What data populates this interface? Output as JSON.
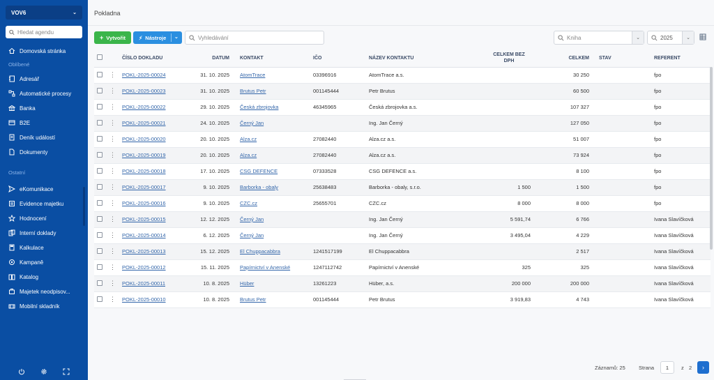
{
  "sidebar": {
    "org_name": "VOV6",
    "search_placeholder": "Hledat agendu",
    "home_label": "Domovská stránka",
    "favorites_label": "Oblíbené",
    "favorites": [
      {
        "label": "Adresář",
        "icon": "address-book-icon"
      },
      {
        "label": "Automatické procesy",
        "icon": "process-icon"
      },
      {
        "label": "Banka",
        "icon": "bank-icon"
      },
      {
        "label": "B2E",
        "icon": "b2e-icon"
      },
      {
        "label": "Deník událostí",
        "icon": "journal-icon"
      },
      {
        "label": "Dokumenty",
        "icon": "document-icon"
      }
    ],
    "other_label": "Ostatní",
    "others": [
      {
        "label": "eKomunikace",
        "icon": "send-icon"
      },
      {
        "label": "Evidence majetku",
        "icon": "asset-icon"
      },
      {
        "label": "Hodnocení",
        "icon": "star-icon"
      },
      {
        "label": "Interní doklady",
        "icon": "internal-doc-icon"
      },
      {
        "label": "Kalkulace",
        "icon": "calculator-icon"
      },
      {
        "label": "Kampaně",
        "icon": "campaign-icon"
      },
      {
        "label": "Katalog",
        "icon": "catalog-icon"
      },
      {
        "label": "Majetek neodpisov...",
        "icon": "property-icon"
      },
      {
        "label": "Mobilní skladník",
        "icon": "mobile-icon"
      }
    ]
  },
  "page_title": "Pokladna",
  "toolbar": {
    "create_label": "Vytvořit",
    "tools_label": "Nástroje",
    "search_placeholder": "Vyhledávání",
    "book_placeholder": "Kniha",
    "year_value": "2025"
  },
  "table": {
    "headers": {
      "doc_number": "ČÍSLO DOKLADU",
      "date": "DATUM",
      "contact": "KONTAKT",
      "ico": "IČO",
      "contact_name": "NÁZEV KONTAKTU",
      "total_ex_vat": "CELKEM BEZ DPH",
      "total": "CELKEM",
      "status": "STAV",
      "referent": "REFERENT"
    },
    "rows": [
      {
        "doc": "POKL-2025-00024",
        "date": "31. 10. 2025",
        "contact": "AtomTrace",
        "ico": "03396916",
        "name": "AtomTrace a.s.",
        "ex_vat": "",
        "total": "30 250",
        "status": "",
        "referent": "fpo"
      },
      {
        "doc": "POKL-2025-00023",
        "date": "31. 10. 2025",
        "contact": "Brutus Petr",
        "ico": "001145444",
        "name": "Petr Brutus",
        "ex_vat": "",
        "total": "60 500",
        "status": "",
        "referent": "fpo"
      },
      {
        "doc": "POKL-2025-00022",
        "date": "29. 10. 2025",
        "contact": "Česká zbrojovka",
        "ico": "46345965",
        "name": "Česká zbrojovka a.s.",
        "ex_vat": "",
        "total": "107 327",
        "status": "",
        "referent": "fpo"
      },
      {
        "doc": "POKL-2025-00021",
        "date": "24. 10. 2025",
        "contact": "Černý Jan",
        "ico": "",
        "name": "Ing. Jan Černý",
        "ex_vat": "",
        "total": "127 050",
        "status": "",
        "referent": "fpo"
      },
      {
        "doc": "POKL-2025-00020",
        "date": "20. 10. 2025",
        "contact": "Alza.cz",
        "ico": "27082440",
        "name": "Alza.cz a.s.",
        "ex_vat": "",
        "total": "51 007",
        "status": "",
        "referent": "fpo"
      },
      {
        "doc": "POKL-2025-00019",
        "date": "20. 10. 2025",
        "contact": "Alza.cz",
        "ico": "27082440",
        "name": "Alza.cz a.s.",
        "ex_vat": "",
        "total": "73 924",
        "status": "",
        "referent": "fpo"
      },
      {
        "doc": "POKL-2025-00018",
        "date": "17. 10. 2025",
        "contact": "CSG DEFENCE",
        "ico": "07333528",
        "name": "CSG DEFENCE a.s.",
        "ex_vat": "",
        "total": "8 100",
        "status": "",
        "referent": "fpo"
      },
      {
        "doc": "POKL-2025-00017",
        "date": "9. 10. 2025",
        "contact": "Barborka - obaly",
        "ico": "25638483",
        "name": "Barborka - obaly, s.r.o.",
        "ex_vat": "1 500",
        "total": "1 500",
        "status": "",
        "referent": "fpo"
      },
      {
        "doc": "POKL-2025-00016",
        "date": "9. 10. 2025",
        "contact": "CZC.cz",
        "ico": "25655701",
        "name": "CZC.cz",
        "ex_vat": "8 000",
        "total": "8 000",
        "status": "",
        "referent": "fpo"
      },
      {
        "doc": "POKL-2025-00015",
        "date": "12. 12. 2025",
        "contact": "Černý Jan",
        "ico": "",
        "name": "Ing. Jan Černý",
        "ex_vat": "5 591,74",
        "total": "6 766",
        "status": "",
        "referent": "Ivana Slavíčková"
      },
      {
        "doc": "POKL-2025-00014",
        "date": "6. 12. 2025",
        "contact": "Černý Jan",
        "ico": "",
        "name": "Ing. Jan Černý",
        "ex_vat": "3 495,04",
        "total": "4 229",
        "status": "",
        "referent": "Ivana Slavíčková"
      },
      {
        "doc": "POKL-2025-00013",
        "date": "15. 12. 2025",
        "contact": "El Chuppacabbra",
        "ico": "1241517199",
        "name": "El Chuppacabbra",
        "ex_vat": "",
        "total": "2 517",
        "status": "",
        "referent": "Ivana Slavíčková"
      },
      {
        "doc": "POKL-2025-00012",
        "date": "15. 11. 2025",
        "contact": "Papírnictví v Anenské",
        "ico": "1247112742",
        "name": "Papírnictví v Anenské",
        "ex_vat": "325",
        "total": "325",
        "status": "",
        "referent": "Ivana Slavíčková"
      },
      {
        "doc": "POKL-2025-00011",
        "date": "10. 8. 2025",
        "contact": "Hüber",
        "ico": "13261223",
        "name": "Hüber, a.s.",
        "ex_vat": "200 000",
        "total": "200 000",
        "status": "",
        "referent": "Ivana Slavíčková"
      },
      {
        "doc": "POKL-2025-00010",
        "date": "10. 8. 2025",
        "contact": "Brutus Petr",
        "ico": "001145444",
        "name": "Petr Brutus",
        "ex_vat": "3 919,83",
        "total": "4 743",
        "status": "",
        "referent": "Ivana Slavíčková"
      }
    ]
  },
  "footer": {
    "records_label": "Záznamů: 25",
    "page_label": "Strana",
    "current_page": "1",
    "of_label": "z",
    "total_pages": "2"
  }
}
